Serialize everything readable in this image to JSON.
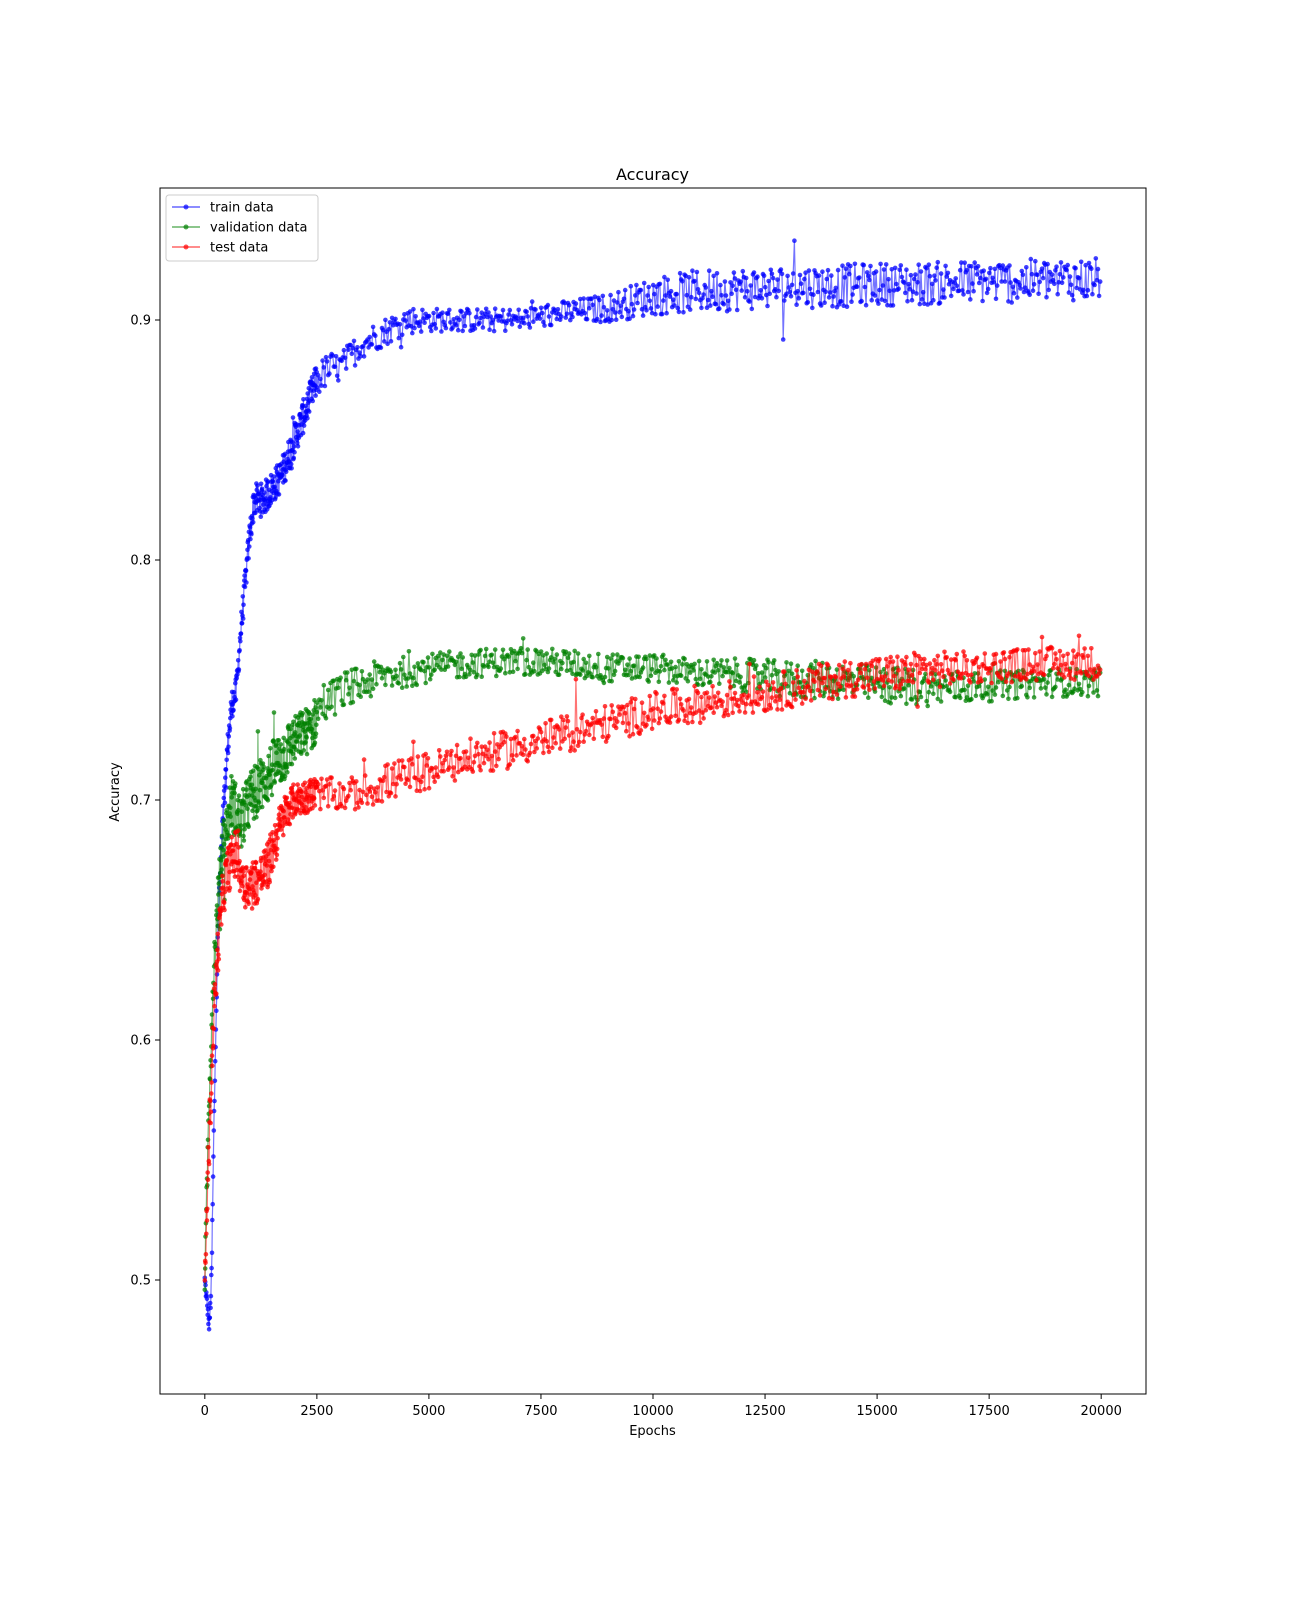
{
  "chart_data": {
    "type": "line",
    "title": "Accuracy",
    "xlabel": "Epochs",
    "ylabel": "Accuracy",
    "xlim": [
      -1000,
      21000
    ],
    "ylim": [
      0.4525,
      0.955
    ],
    "x_ticks": [
      0,
      2500,
      5000,
      7500,
      10000,
      12500,
      15000,
      17500,
      20000
    ],
    "y_ticks": [
      0.5,
      0.6,
      0.7,
      0.8,
      0.9
    ],
    "grid": false,
    "legend_position": "top-left",
    "series": [
      {
        "name": "train data",
        "color": "#0000ff",
        "x": [
          0,
          100,
          150,
          200,
          250,
          300,
          400,
          500,
          600,
          700,
          800,
          900,
          1000,
          1100,
          1300,
          1500,
          1700,
          1900,
          2100,
          2300,
          2500,
          2800,
          3000,
          3500,
          4000,
          4500,
          5000,
          6000,
          7000,
          8000,
          9000,
          10000,
          11000,
          12000,
          13000,
          14000,
          15000,
          16000,
          17000,
          18000,
          19000,
          20000
        ],
        "y": [
          0.5,
          0.48,
          0.5,
          0.56,
          0.61,
          0.65,
          0.69,
          0.72,
          0.74,
          0.745,
          0.77,
          0.79,
          0.81,
          0.825,
          0.825,
          0.83,
          0.835,
          0.845,
          0.855,
          0.865,
          0.875,
          0.88,
          0.88,
          0.89,
          0.895,
          0.9,
          0.9,
          0.9,
          0.9,
          0.903,
          0.905,
          0.91,
          0.912,
          0.913,
          0.914,
          0.914,
          0.915,
          0.915,
          0.916,
          0.916,
          0.917,
          0.917
        ],
        "spread": [
          0.003,
          0.003,
          0.005,
          0.006,
          0.006,
          0.006,
          0.006,
          0.006,
          0.006,
          0.006,
          0.006,
          0.006,
          0.006,
          0.007,
          0.007,
          0.007,
          0.007,
          0.007,
          0.007,
          0.007,
          0.007,
          0.007,
          0.006,
          0.006,
          0.006,
          0.006,
          0.005,
          0.005,
          0.005,
          0.005,
          0.006,
          0.008,
          0.009,
          0.009,
          0.009,
          0.009,
          0.009,
          0.009,
          0.009,
          0.009,
          0.009,
          0.009
        ]
      },
      {
        "name": "validation data",
        "color": "#008000",
        "x": [
          0,
          100,
          200,
          300,
          400,
          500,
          600,
          700,
          800,
          900,
          1000,
          1200,
          1400,
          1600,
          1800,
          2000,
          2200,
          2400,
          2600,
          2800,
          3000,
          3500,
          4000,
          5000,
          6000,
          7000,
          8000,
          9000,
          10000,
          11000,
          12000,
          13000,
          14000,
          15000,
          16000,
          17000,
          18000,
          19000,
          20000
        ],
        "y": [
          0.5,
          0.58,
          0.63,
          0.66,
          0.68,
          0.69,
          0.7,
          0.695,
          0.69,
          0.695,
          0.7,
          0.705,
          0.71,
          0.715,
          0.72,
          0.725,
          0.728,
          0.73,
          0.74,
          0.742,
          0.745,
          0.748,
          0.752,
          0.755,
          0.757,
          0.758,
          0.757,
          0.755,
          0.755,
          0.753,
          0.752,
          0.75,
          0.75,
          0.748,
          0.747,
          0.747,
          0.748,
          0.749,
          0.749
        ],
        "spread": [
          0.005,
          0.01,
          0.01,
          0.01,
          0.01,
          0.01,
          0.012,
          0.012,
          0.012,
          0.012,
          0.012,
          0.012,
          0.012,
          0.012,
          0.012,
          0.01,
          0.01,
          0.01,
          0.01,
          0.008,
          0.008,
          0.008,
          0.007,
          0.006,
          0.006,
          0.006,
          0.006,
          0.006,
          0.006,
          0.006,
          0.007,
          0.008,
          0.008,
          0.008,
          0.008,
          0.007,
          0.006,
          0.006,
          0.006
        ]
      },
      {
        "name": "test data",
        "color": "#ff0000",
        "x": [
          0,
          100,
          200,
          300,
          400,
          500,
          600,
          700,
          800,
          900,
          1000,
          1200,
          1400,
          1600,
          1800,
          2000,
          2500,
          3000,
          3500,
          4000,
          4500,
          5000,
          5500,
          6000,
          6500,
          7000,
          7500,
          8000,
          9000,
          10000,
          11000,
          12000,
          13000,
          14000,
          15000,
          16000,
          17000,
          18000,
          19000,
          20000
        ],
        "y": [
          0.5,
          0.56,
          0.61,
          0.64,
          0.66,
          0.67,
          0.675,
          0.678,
          0.67,
          0.665,
          0.665,
          0.667,
          0.672,
          0.685,
          0.695,
          0.7,
          0.703,
          0.702,
          0.703,
          0.707,
          0.71,
          0.712,
          0.715,
          0.718,
          0.72,
          0.722,
          0.725,
          0.727,
          0.732,
          0.737,
          0.74,
          0.743,
          0.746,
          0.75,
          0.752,
          0.754,
          0.755,
          0.756,
          0.757,
          0.757
        ],
        "spread": [
          0.005,
          0.01,
          0.01,
          0.01,
          0.01,
          0.01,
          0.01,
          0.01,
          0.01,
          0.01,
          0.01,
          0.01,
          0.01,
          0.01,
          0.008,
          0.007,
          0.007,
          0.007,
          0.007,
          0.008,
          0.008,
          0.008,
          0.008,
          0.008,
          0.008,
          0.008,
          0.008,
          0.008,
          0.008,
          0.008,
          0.008,
          0.008,
          0.008,
          0.008,
          0.008,
          0.008,
          0.007,
          0.007,
          0.007,
          0.007
        ]
      }
    ]
  }
}
